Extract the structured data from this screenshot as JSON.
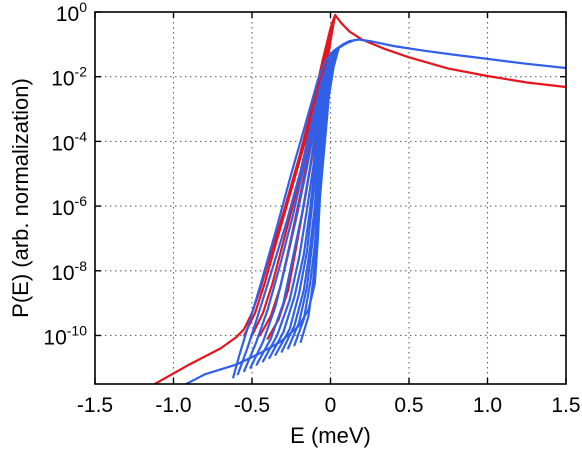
{
  "chart_data": {
    "type": "line",
    "xlabel": "E (meV)",
    "ylabel": "P(E) (arb. normalization)",
    "xlim": [
      -1.5,
      1.5
    ],
    "ylim_log10": [
      -11.5,
      0
    ],
    "y_scale": "log",
    "grid": true,
    "x_ticks": [
      {
        "value": -1.5,
        "label": "-1.5"
      },
      {
        "value": -1.0,
        "label": "-1.0"
      },
      {
        "value": -0.5,
        "label": "-0.5"
      },
      {
        "value": 0,
        "label": "0"
      },
      {
        "value": 0.5,
        "label": "0.5"
      },
      {
        "value": 1.0,
        "label": "1.0"
      },
      {
        "value": 1.5,
        "label": "1.5"
      }
    ],
    "y_ticks": [
      {
        "exp": 0,
        "base": "10",
        "sup": "0"
      },
      {
        "exp": -2,
        "base": "10",
        "sup": "-2"
      },
      {
        "exp": -4,
        "base": "10",
        "sup": "-4"
      },
      {
        "exp": -6,
        "base": "10",
        "sup": "-6"
      },
      {
        "exp": -8,
        "base": "10",
        "sup": "-8"
      },
      {
        "exp": -10,
        "base": "10",
        "sup": "-10"
      }
    ],
    "colors": {
      "red": "#e8141c",
      "blue": "#3060e8"
    },
    "series": [
      {
        "color": "red",
        "points": [
          [
            -1.12,
            -11.5
          ],
          [
            -0.9,
            -10.9
          ],
          [
            -0.7,
            -10.4
          ],
          [
            -0.6,
            -10.05
          ],
          [
            -0.55,
            -9.8
          ],
          [
            -0.5,
            -9.3
          ],
          [
            -0.45,
            -8.6
          ],
          [
            -0.4,
            -7.8
          ],
          [
            -0.3,
            -6.2
          ],
          [
            -0.2,
            -4.5
          ],
          [
            -0.1,
            -2.6
          ],
          [
            -0.05,
            -1.5
          ],
          [
            0,
            -0.5
          ],
          [
            0.03,
            -0.1
          ],
          [
            0.07,
            -0.35
          ],
          [
            0.12,
            -0.6
          ],
          [
            0.2,
            -0.85
          ],
          [
            0.35,
            -1.15
          ],
          [
            0.5,
            -1.4
          ],
          [
            0.75,
            -1.75
          ],
          [
            1.0,
            -1.98
          ],
          [
            1.25,
            -2.18
          ],
          [
            1.5,
            -2.32
          ]
        ]
      },
      {
        "color": "red",
        "points": [
          [
            -0.55,
            -10.0
          ],
          [
            -0.48,
            -9.3
          ],
          [
            -0.42,
            -8.4
          ],
          [
            -0.35,
            -7.2
          ],
          [
            -0.25,
            -5.5
          ],
          [
            -0.15,
            -3.8
          ],
          [
            -0.08,
            -2.3
          ],
          [
            -0.03,
            -1.2
          ],
          [
            0.01,
            -0.35
          ],
          [
            0.03,
            -0.1
          ]
        ]
      },
      {
        "color": "red",
        "points": [
          [
            -0.5,
            -10.0
          ],
          [
            -0.43,
            -9.3
          ],
          [
            -0.37,
            -8.4
          ],
          [
            -0.3,
            -7.1
          ],
          [
            -0.22,
            -5.6
          ],
          [
            -0.13,
            -3.8
          ],
          [
            -0.07,
            -2.3
          ],
          [
            -0.02,
            -1.1
          ],
          [
            0.01,
            -0.4
          ],
          [
            0.03,
            -0.1
          ]
        ]
      },
      {
        "color": "red",
        "points": [
          [
            -0.45,
            -10.0
          ],
          [
            -0.38,
            -9.4
          ],
          [
            -0.32,
            -8.5
          ],
          [
            -0.26,
            -7.2
          ],
          [
            -0.19,
            -5.6
          ],
          [
            -0.11,
            -3.7
          ],
          [
            -0.05,
            -2.2
          ],
          [
            -0.01,
            -1.0
          ],
          [
            0.015,
            -0.4
          ],
          [
            0.03,
            -0.1
          ]
        ]
      },
      {
        "color": "red",
        "points": [
          [
            -0.4,
            -10.1
          ],
          [
            -0.33,
            -9.5
          ],
          [
            -0.27,
            -8.6
          ],
          [
            -0.22,
            -7.3
          ],
          [
            -0.16,
            -5.7
          ],
          [
            -0.09,
            -3.7
          ],
          [
            -0.04,
            -2.1
          ],
          [
            0,
            -0.9
          ],
          [
            0.02,
            -0.35
          ],
          [
            0.03,
            -0.1
          ]
        ]
      },
      {
        "color": "blue",
        "points": [
          [
            -0.92,
            -11.5
          ],
          [
            -0.8,
            -11.2
          ],
          [
            -0.6,
            -10.9
          ],
          [
            -0.45,
            -10.55
          ],
          [
            -0.32,
            -10.2
          ],
          [
            -0.2,
            -9.7
          ],
          [
            -0.14,
            -9.2
          ],
          [
            -0.1,
            -8.4
          ],
          [
            -0.08,
            -7.0
          ],
          [
            -0.06,
            -5.0
          ],
          [
            -0.04,
            -3.0
          ],
          [
            -0.01,
            -1.7
          ],
          [
            0.03,
            -1.2
          ],
          [
            0.08,
            -1.0
          ],
          [
            0.12,
            -0.9
          ],
          [
            0.18,
            -0.85
          ],
          [
            0.25,
            -0.9
          ],
          [
            0.4,
            -1.05
          ],
          [
            0.6,
            -1.2
          ],
          [
            0.8,
            -1.33
          ],
          [
            1.0,
            -1.45
          ],
          [
            1.25,
            -1.6
          ],
          [
            1.5,
            -1.73
          ]
        ]
      },
      {
        "color": "blue",
        "points": [
          [
            -0.62,
            -11.3
          ],
          [
            -0.58,
            -10.6
          ],
          [
            -0.53,
            -9.8
          ],
          [
            -0.45,
            -8.5
          ],
          [
            -0.35,
            -6.8
          ],
          [
            -0.25,
            -5.0
          ],
          [
            -0.15,
            -3.3
          ],
          [
            -0.08,
            -2.1
          ],
          [
            -0.03,
            -1.5
          ],
          [
            0.02,
            -1.2
          ],
          [
            0.08,
            -1.0
          ],
          [
            0.14,
            -0.9
          ]
        ]
      },
      {
        "color": "blue",
        "points": [
          [
            -0.59,
            -11.2
          ],
          [
            -0.53,
            -10.4
          ],
          [
            -0.47,
            -9.5
          ],
          [
            -0.38,
            -8.1
          ],
          [
            -0.28,
            -6.5
          ],
          [
            -0.19,
            -4.9
          ],
          [
            -0.12,
            -3.4
          ],
          [
            -0.06,
            -2.2
          ],
          [
            -0.01,
            -1.5
          ],
          [
            0.04,
            -1.15
          ],
          [
            0.1,
            -0.97
          ]
        ]
      },
      {
        "color": "blue",
        "points": [
          [
            -0.55,
            -11.1
          ],
          [
            -0.48,
            -10.3
          ],
          [
            -0.4,
            -9.2
          ],
          [
            -0.32,
            -7.8
          ],
          [
            -0.24,
            -6.3
          ],
          [
            -0.17,
            -4.8
          ],
          [
            -0.11,
            -3.4
          ],
          [
            -0.05,
            -2.2
          ],
          [
            0,
            -1.5
          ],
          [
            0.05,
            -1.15
          ]
        ]
      },
      {
        "color": "blue",
        "points": [
          [
            -0.51,
            -11.0
          ],
          [
            -0.43,
            -10.2
          ],
          [
            -0.35,
            -9.1
          ],
          [
            -0.28,
            -7.7
          ],
          [
            -0.21,
            -6.2
          ],
          [
            -0.15,
            -4.8
          ],
          [
            -0.1,
            -3.5
          ],
          [
            -0.05,
            -2.3
          ],
          [
            0,
            -1.5
          ],
          [
            0.05,
            -1.15
          ]
        ]
      },
      {
        "color": "blue",
        "points": [
          [
            -0.47,
            -10.9
          ],
          [
            -0.38,
            -10.1
          ],
          [
            -0.3,
            -9.0
          ],
          [
            -0.24,
            -7.6
          ],
          [
            -0.18,
            -6.2
          ],
          [
            -0.13,
            -4.8
          ],
          [
            -0.09,
            -3.5
          ],
          [
            -0.05,
            -2.4
          ],
          [
            -0.01,
            -1.6
          ],
          [
            0.05,
            -1.15
          ]
        ]
      },
      {
        "color": "blue",
        "points": [
          [
            -0.43,
            -10.8
          ],
          [
            -0.34,
            -10.0
          ],
          [
            -0.26,
            -8.9
          ],
          [
            -0.2,
            -7.6
          ],
          [
            -0.15,
            -6.1
          ],
          [
            -0.11,
            -4.8
          ],
          [
            -0.08,
            -3.6
          ],
          [
            -0.04,
            -2.4
          ],
          [
            0,
            -1.6
          ],
          [
            0.05,
            -1.15
          ]
        ]
      },
      {
        "color": "blue",
        "points": [
          [
            -0.39,
            -10.7
          ],
          [
            -0.3,
            -9.9
          ],
          [
            -0.23,
            -8.8
          ],
          [
            -0.17,
            -7.5
          ],
          [
            -0.13,
            -6.1
          ],
          [
            -0.1,
            -4.8
          ],
          [
            -0.07,
            -3.6
          ],
          [
            -0.04,
            -2.5
          ],
          [
            0,
            -1.6
          ],
          [
            0.05,
            -1.15
          ]
        ]
      },
      {
        "color": "blue",
        "points": [
          [
            -0.35,
            -10.6
          ],
          [
            -0.26,
            -9.8
          ],
          [
            -0.2,
            -8.7
          ],
          [
            -0.15,
            -7.4
          ],
          [
            -0.12,
            -6.1
          ],
          [
            -0.09,
            -4.8
          ],
          [
            -0.06,
            -3.6
          ],
          [
            -0.03,
            -2.5
          ],
          [
            0.01,
            -1.6
          ],
          [
            0.05,
            -1.15
          ]
        ]
      },
      {
        "color": "blue",
        "points": [
          [
            -0.31,
            -10.5
          ],
          [
            -0.23,
            -9.7
          ],
          [
            -0.17,
            -8.6
          ],
          [
            -0.13,
            -7.3
          ],
          [
            -0.1,
            -6.0
          ],
          [
            -0.08,
            -4.8
          ],
          [
            -0.05,
            -3.6
          ],
          [
            -0.02,
            -2.5
          ],
          [
            0.01,
            -1.7
          ],
          [
            0.05,
            -1.15
          ]
        ]
      },
      {
        "color": "blue",
        "points": [
          [
            -0.27,
            -10.4
          ],
          [
            -0.2,
            -9.6
          ],
          [
            -0.15,
            -8.5
          ],
          [
            -0.12,
            -7.3
          ],
          [
            -0.09,
            -6.0
          ],
          [
            -0.07,
            -4.8
          ],
          [
            -0.05,
            -3.7
          ],
          [
            -0.02,
            -2.6
          ],
          [
            0.01,
            -1.7
          ],
          [
            0.05,
            -1.15
          ]
        ]
      },
      {
        "color": "blue",
        "points": [
          [
            -0.23,
            -10.3
          ],
          [
            -0.17,
            -9.5
          ],
          [
            -0.13,
            -8.4
          ],
          [
            -0.1,
            -7.2
          ],
          [
            -0.08,
            -6.0
          ],
          [
            -0.06,
            -4.8
          ],
          [
            -0.04,
            -3.7
          ],
          [
            -0.02,
            -2.6
          ],
          [
            0.01,
            -1.7
          ],
          [
            0.05,
            -1.15
          ]
        ]
      },
      {
        "color": "blue",
        "points": [
          [
            -0.19,
            -10.2
          ],
          [
            -0.14,
            -9.4
          ],
          [
            -0.11,
            -8.3
          ],
          [
            -0.09,
            -7.1
          ],
          [
            -0.07,
            -5.9
          ],
          [
            -0.05,
            -4.8
          ],
          [
            -0.03,
            -3.7
          ],
          [
            -0.01,
            -2.6
          ],
          [
            0.02,
            -1.7
          ],
          [
            0.05,
            -1.15
          ]
        ]
      }
    ]
  }
}
